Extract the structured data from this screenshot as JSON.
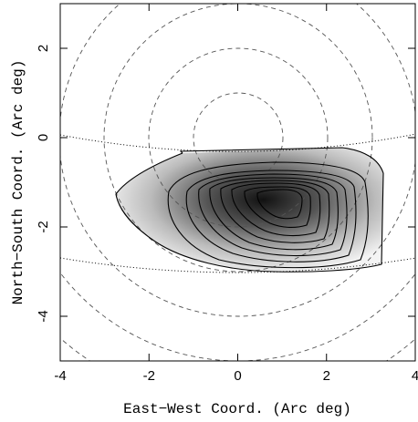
{
  "chart_data": {
    "type": "contour",
    "x_label": "East−West Coord. (Arc deg)",
    "y_label": "North−South Coord. (Arc deg)",
    "xlim": [
      -4,
      4
    ],
    "ylim": [
      -5,
      3
    ],
    "xticks": [
      -4,
      -2,
      0,
      2,
      4
    ],
    "yticks": [
      -4,
      -2,
      0,
      2
    ]
  }
}
